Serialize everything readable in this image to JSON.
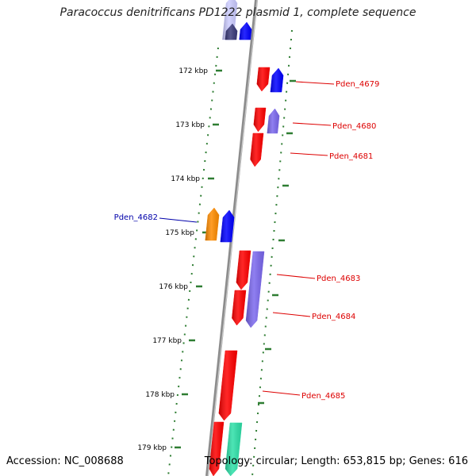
{
  "title": "Paracoccus denitrificans PD1222 plasmid 1, complete sequence",
  "footer": {
    "accession": "Accession: NC_008688",
    "summary": "Topology: circular; Length: 653,815 bp; Genes: 616"
  },
  "colors": {
    "backbone": "#8c8c8c",
    "tick": "#2e7d32",
    "gene_red": "#ff0000",
    "gene_blue": "#0000ff",
    "gene_slate": "#7b68ee",
    "gene_orange": "#ff8c00",
    "gene_teal": "#2de0a8",
    "gene_navy": "#3a3a7a",
    "gene_pale": "#ccccff",
    "label_red": "#dd0000",
    "label_blue": "#0000aa"
  },
  "kbp_ticks": [
    {
      "label": "172 kbp",
      "kbp": 172
    },
    {
      "label": "173 kbp",
      "kbp": 173
    },
    {
      "label": "174 kbp",
      "kbp": 174
    },
    {
      "label": "175 kbp",
      "kbp": 175
    },
    {
      "label": "176 kbp",
      "kbp": 176
    },
    {
      "label": "177 kbp",
      "kbp": 177
    },
    {
      "label": "178 kbp",
      "kbp": 178
    },
    {
      "label": "179 kbp",
      "kbp": 179
    }
  ],
  "gene_labels": [
    {
      "name": "Pden_4679",
      "color": "label_red"
    },
    {
      "name": "Pden_4680",
      "color": "label_red"
    },
    {
      "name": "Pden_4681",
      "color": "label_red"
    },
    {
      "name": "Pden_4682",
      "color": "label_blue"
    },
    {
      "name": "Pden_4683",
      "color": "label_red"
    },
    {
      "name": "Pden_4684",
      "color": "label_red"
    },
    {
      "name": "Pden_4685",
      "color": "label_red"
    }
  ]
}
